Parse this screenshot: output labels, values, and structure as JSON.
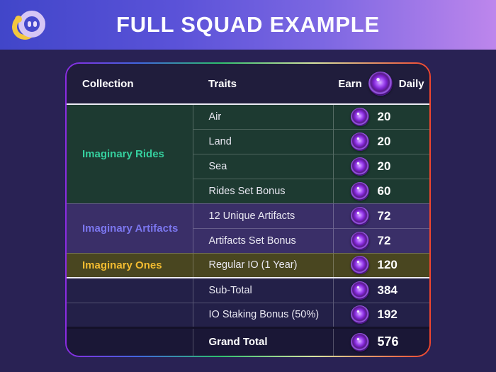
{
  "banner": {
    "title": "FULL SQUAD EXAMPLE",
    "gradient_left": "#4146c9",
    "gradient_right": "#bd86ec",
    "logo_colors": {
      "ring": "#d6c6f5",
      "accent": "#f3c73f"
    }
  },
  "table": {
    "headers": {
      "collection": "Collection",
      "traits": "Traits",
      "earn_prefix": "Earn",
      "earn_suffix": "Daily"
    },
    "sections": [
      {
        "collection": "Imaginary Rides",
        "label_color": "#35cf9e",
        "bg_color": "#1d3a31",
        "rows": [
          {
            "trait": "Air",
            "value": "20"
          },
          {
            "trait": "Land",
            "value": "20"
          },
          {
            "trait": "Sea",
            "value": "20"
          },
          {
            "trait": "Rides Set Bonus",
            "value": "60"
          }
        ]
      },
      {
        "collection": "Imaginary Artifacts",
        "label_color": "#7b76ee",
        "bg_color": "#3a2f68",
        "rows": [
          {
            "trait": "12 Unique Artifacts",
            "value": "72"
          },
          {
            "trait": "Artifacts Set Bonus",
            "value": "72"
          }
        ]
      },
      {
        "collection": "Imaginary Ones",
        "label_color": "#f2bb30",
        "bg_color": "#494620",
        "rows": [
          {
            "trait": "Regular IO (1 Year)",
            "value": "120"
          }
        ]
      }
    ],
    "summary_rows": [
      {
        "trait": "Sub-Total",
        "value": "384"
      },
      {
        "trait": "IO Staking Bonus (50%)",
        "value": "192"
      }
    ],
    "grand_total": {
      "trait": "Grand Total",
      "value": "576"
    }
  },
  "chart_data": {
    "type": "table",
    "title": "FULL SQUAD EXAMPLE",
    "columns": [
      "Collection",
      "Traits",
      "Earn Daily"
    ],
    "rows": [
      [
        "Imaginary Rides",
        "Air",
        20
      ],
      [
        "Imaginary Rides",
        "Land",
        20
      ],
      [
        "Imaginary Rides",
        "Sea",
        20
      ],
      [
        "Imaginary Rides",
        "Rides Set Bonus",
        60
      ],
      [
        "Imaginary Artifacts",
        "12 Unique Artifacts",
        72
      ],
      [
        "Imaginary Artifacts",
        "Artifacts Set Bonus",
        72
      ],
      [
        "Imaginary Ones",
        "Regular IO (1 Year)",
        120
      ],
      [
        "",
        "Sub-Total",
        384
      ],
      [
        "",
        "IO Staking Bonus (50%)",
        192
      ],
      [
        "",
        "Grand Total",
        576
      ]
    ]
  }
}
